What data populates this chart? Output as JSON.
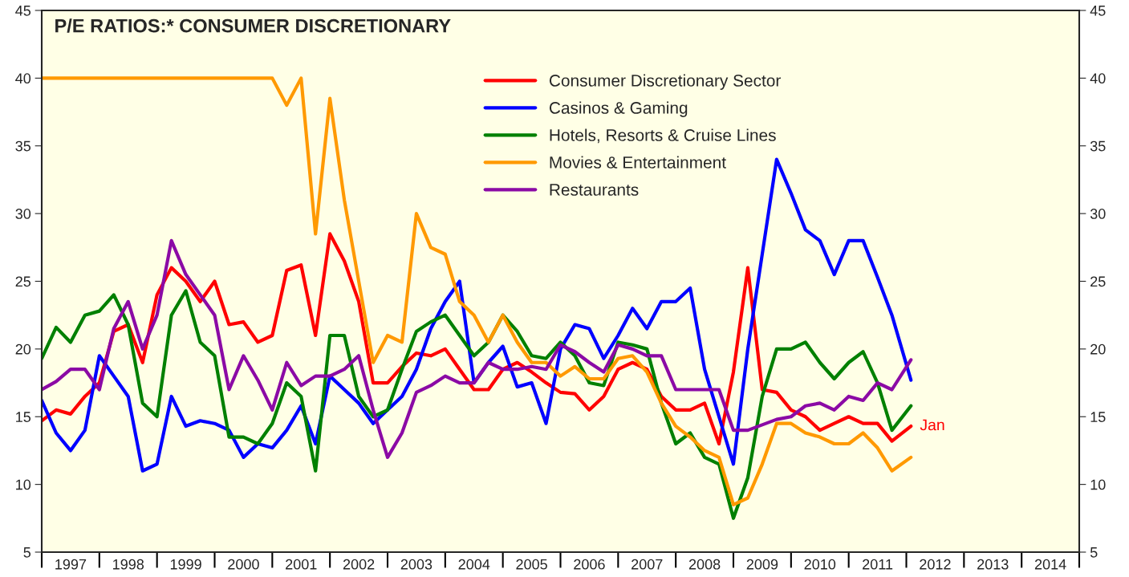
{
  "chart_data": {
    "type": "line",
    "title": "P/E RATIOS:* CONSUMER DISCRETIONARY",
    "x": [
      1997.0,
      1997.25,
      1997.5,
      1997.75,
      1998.0,
      1998.25,
      1998.5,
      1998.75,
      1999.0,
      1999.25,
      1999.5,
      1999.75,
      2000.0,
      2000.25,
      2000.5,
      2000.75,
      2001.0,
      2001.25,
      2001.5,
      2001.75,
      2002.0,
      2002.25,
      2002.5,
      2002.75,
      2003.0,
      2003.25,
      2003.5,
      2003.75,
      2004.0,
      2004.25,
      2004.5,
      2004.75,
      2005.0,
      2005.25,
      2005.5,
      2005.75,
      2006.0,
      2006.25,
      2006.5,
      2006.75,
      2007.0,
      2007.25,
      2007.5,
      2007.75,
      2008.0,
      2008.25,
      2008.5,
      2008.75,
      2009.0,
      2009.25,
      2009.5,
      2009.75,
      2010.0,
      2010.25,
      2010.5,
      2010.75,
      2011.0,
      2011.25,
      2011.5,
      2011.75,
      2012.08
    ],
    "series": [
      {
        "name": "Consumer Discretionary Sector",
        "color": "#ff0000",
        "values": [
          14.7,
          15.5,
          15.2,
          16.5,
          17.5,
          21.3,
          21.8,
          19,
          24,
          26,
          25,
          23.5,
          25,
          21.8,
          22,
          20.5,
          21,
          25.8,
          26.2,
          21,
          28.5,
          26.5,
          23.5,
          17.5,
          17.5,
          18.7,
          19.7,
          19.5,
          20,
          18.5,
          17,
          17,
          18.5,
          19,
          18.3,
          17.5,
          16.8,
          16.7,
          15.5,
          16.5,
          18.5,
          19,
          18.5,
          16.5,
          15.5,
          15.5,
          16,
          13,
          18.3,
          26,
          17,
          16.8,
          15.5,
          15,
          14,
          14.5,
          15,
          14.5,
          14.5,
          13.2,
          14.3
        ]
      },
      {
        "name": "Casinos & Gaming",
        "color": "#0000ff",
        "values": [
          16.2,
          13.8,
          12.5,
          14,
          19.5,
          18,
          16.5,
          11,
          11.5,
          16.5,
          14.3,
          14.7,
          14.5,
          14,
          12,
          13,
          12.7,
          14,
          15.8,
          13,
          18,
          17,
          16,
          14.5,
          15.5,
          16.5,
          18.5,
          21.5,
          23.5,
          25,
          17.5,
          19,
          20.2,
          17.2,
          17.5,
          14.5,
          20,
          21.8,
          21.5,
          19.3,
          21,
          23,
          21.5,
          23.5,
          23.5,
          24.5,
          18.5,
          15,
          11.5,
          20,
          27,
          34,
          31.5,
          28.8,
          28,
          25.5,
          28,
          28,
          25.3,
          22.5,
          17.7
        ]
      },
      {
        "name": "Hotels, Resorts & Cruise Lines",
        "color": "#008000",
        "values": [
          19.3,
          21.6,
          20.5,
          22.5,
          22.8,
          24,
          21.8,
          16,
          15,
          22.5,
          24.3,
          20.5,
          19.5,
          13.5,
          13.5,
          13,
          14.5,
          17.5,
          16.5,
          11,
          21,
          21,
          16.5,
          15,
          15.5,
          18.5,
          21.3,
          22,
          22.5,
          21,
          19.5,
          20.5,
          22.5,
          21.3,
          19.5,
          19.3,
          20.5,
          19.5,
          17.5,
          17.3,
          20.5,
          20.3,
          20,
          16,
          13,
          13.8,
          12,
          11.5,
          7.5,
          10.5,
          16.5,
          20,
          20,
          20.5,
          19,
          17.8,
          19,
          19.8,
          17.5,
          14,
          15.8
        ]
      },
      {
        "name": "Movies & Entertainment",
        "color": "#ff9900",
        "values": [
          40,
          40,
          40,
          40,
          40,
          40,
          40,
          40,
          40,
          40,
          40,
          40,
          40,
          40,
          40,
          40,
          40,
          38,
          40,
          28.5,
          38.5,
          31,
          25,
          19,
          21,
          20.5,
          30,
          27.5,
          27,
          23.5,
          22.5,
          20.5,
          22.5,
          20.5,
          19,
          19,
          18,
          18.7,
          17.8,
          17.8,
          19.3,
          19.5,
          18.3,
          16,
          14.3,
          13.5,
          12.5,
          12,
          8.5,
          9,
          11.5,
          14.5,
          14.5,
          13.8,
          13.5,
          13,
          13,
          13.8,
          12.7,
          11,
          12
        ]
      },
      {
        "name": "Restaurants",
        "color": "#8b0aa5",
        "values": [
          17,
          17.6,
          18.5,
          18.5,
          17,
          21.5,
          23.5,
          20,
          22.5,
          28,
          25.5,
          24,
          22.5,
          17,
          19.5,
          17.7,
          15.5,
          19,
          17.3,
          18,
          18,
          18.5,
          19.5,
          15.5,
          12,
          13.8,
          16.8,
          17.3,
          18,
          17.5,
          17.5,
          19,
          18.5,
          18.5,
          18.7,
          18.5,
          20.3,
          19.8,
          19,
          18.3,
          20.3,
          20,
          19.5,
          19.5,
          17,
          17,
          17,
          17,
          14,
          14,
          14.4,
          14.8,
          15,
          15.8,
          16,
          15.5,
          16.5,
          16.2,
          17.5,
          17,
          19.2
        ]
      }
    ],
    "annotations": [
      {
        "text": "Jan",
        "x": 2012.08,
        "y": 14.3
      }
    ],
    "xlim": [
      1997,
      2015
    ],
    "xticks": [
      {
        "value": 1997.5,
        "label": "1997"
      },
      {
        "value": 1998.5,
        "label": "1998"
      },
      {
        "value": 1999.5,
        "label": "1999"
      },
      {
        "value": 2000.5,
        "label": "2000"
      },
      {
        "value": 2001.5,
        "label": "2001"
      },
      {
        "value": 2002.5,
        "label": "2002"
      },
      {
        "value": 2003.5,
        "label": "2003"
      },
      {
        "value": 2004.5,
        "label": "2004"
      },
      {
        "value": 2005.5,
        "label": "2005"
      },
      {
        "value": 2006.5,
        "label": "2006"
      },
      {
        "value": 2007.5,
        "label": "2007"
      },
      {
        "value": 2008.5,
        "label": "2008"
      },
      {
        "value": 2009.5,
        "label": "2009"
      },
      {
        "value": 2010.5,
        "label": "2010"
      },
      {
        "value": 2011.5,
        "label": "2011"
      },
      {
        "value": 2012.5,
        "label": "2012"
      },
      {
        "value": 2013.5,
        "label": "2013"
      },
      {
        "value": 2014.5,
        "label": "2014"
      }
    ],
    "ylim": [
      5,
      45
    ],
    "yticks": [
      5,
      10,
      15,
      20,
      25,
      30,
      35,
      40,
      45
    ],
    "y2lim": [
      5,
      45
    ],
    "y2ticks": [
      5,
      10,
      15,
      20,
      25,
      30,
      35,
      40,
      45
    ],
    "legend": "top",
    "grid": false,
    "line_style": "solid"
  }
}
